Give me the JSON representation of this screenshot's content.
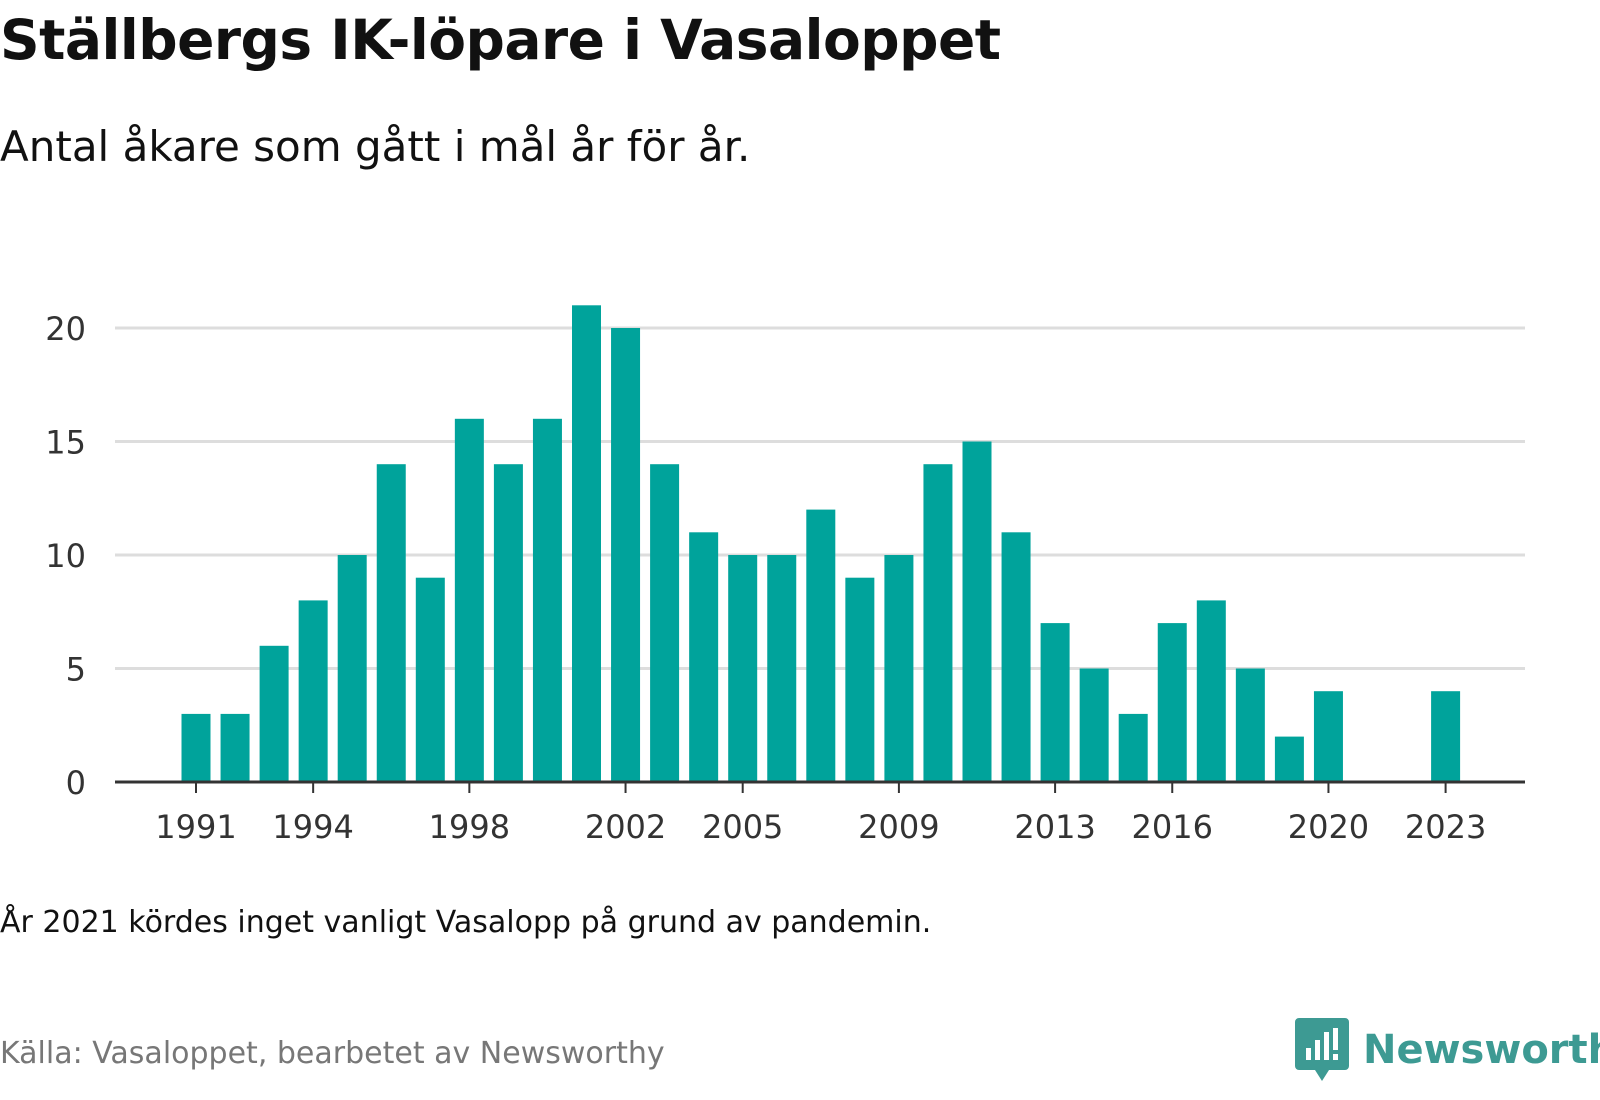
{
  "title": "Ställbergs IK-löpare i Vasaloppet",
  "subtitle": "Antal åkare som gått i mål år för år.",
  "note": "År 2021 kördes inget vanligt Vasalopp på grund av pandemin.",
  "source": "Källa: Vasaloppet, bearbetet av Newsworthy",
  "brand": {
    "name": "Newsworthy",
    "icon": "newsworthy-logo-icon",
    "color": "#3d9a93"
  },
  "colors": {
    "bar": "#00a39b",
    "grid": "#dddddd",
    "axis": "#333333"
  },
  "chart_data": {
    "type": "bar",
    "categories": [
      1991,
      1992,
      1993,
      1994,
      1995,
      1996,
      1997,
      1998,
      1999,
      2000,
      2001,
      2002,
      2003,
      2004,
      2005,
      2006,
      2007,
      2008,
      2009,
      2010,
      2011,
      2012,
      2013,
      2014,
      2015,
      2016,
      2017,
      2018,
      2019,
      2020,
      2021,
      2022,
      2023
    ],
    "values": [
      3,
      3,
      6,
      8,
      10,
      14,
      9,
      16,
      14,
      16,
      21,
      20,
      14,
      11,
      10,
      10,
      12,
      9,
      10,
      14,
      15,
      11,
      7,
      5,
      3,
      7,
      8,
      5,
      2,
      4,
      null,
      null,
      4
    ],
    "xticks": [
      1991,
      1994,
      1998,
      2002,
      2005,
      2009,
      2013,
      2016,
      2020,
      2023
    ],
    "yticks": [
      0,
      5,
      10,
      15,
      20
    ],
    "ylim": [
      0,
      21
    ],
    "grid": true,
    "xlabel": "",
    "ylabel": ""
  }
}
